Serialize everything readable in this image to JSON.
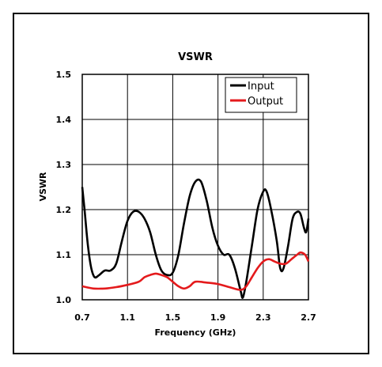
{
  "chart_data": {
    "type": "line",
    "title": "VSWR",
    "xlabel": "Frequency (GHz)",
    "ylabel": "VSWR",
    "xlim": [
      0.7,
      2.7
    ],
    "ylim": [
      1.0,
      1.5
    ],
    "xticks": [
      "0.7",
      "1.1",
      "1.5",
      "1.9",
      "2.3",
      "2.7"
    ],
    "yticks": [
      "1.0",
      "1.1",
      "1.2",
      "1.3",
      "1.4",
      "1.5"
    ],
    "grid": true,
    "legend_position": "top-right",
    "series": [
      {
        "name": "Input",
        "color": "#000000",
        "points": [
          [
            0.7,
            1.25
          ],
          [
            0.72,
            1.2
          ],
          [
            0.75,
            1.12
          ],
          [
            0.78,
            1.07
          ],
          [
            0.81,
            1.05
          ],
          [
            0.85,
            1.055
          ],
          [
            0.9,
            1.065
          ],
          [
            0.95,
            1.065
          ],
          [
            1.0,
            1.08
          ],
          [
            1.05,
            1.13
          ],
          [
            1.1,
            1.175
          ],
          [
            1.15,
            1.195
          ],
          [
            1.2,
            1.195
          ],
          [
            1.25,
            1.18
          ],
          [
            1.3,
            1.15
          ],
          [
            1.35,
            1.1
          ],
          [
            1.4,
            1.065
          ],
          [
            1.45,
            1.055
          ],
          [
            1.5,
            1.06
          ],
          [
            1.55,
            1.1
          ],
          [
            1.6,
            1.17
          ],
          [
            1.65,
            1.23
          ],
          [
            1.7,
            1.262
          ],
          [
            1.75,
            1.262
          ],
          [
            1.8,
            1.22
          ],
          [
            1.85,
            1.16
          ],
          [
            1.9,
            1.12
          ],
          [
            1.95,
            1.1
          ],
          [
            2.0,
            1.1
          ],
          [
            2.05,
            1.07
          ],
          [
            2.1,
            1.02
          ],
          [
            2.12,
            1.005
          ],
          [
            2.15,
            1.04
          ],
          [
            2.2,
            1.12
          ],
          [
            2.25,
            1.2
          ],
          [
            2.3,
            1.24
          ],
          [
            2.33,
            1.24
          ],
          [
            2.37,
            1.2
          ],
          [
            2.42,
            1.13
          ],
          [
            2.45,
            1.07
          ],
          [
            2.48,
            1.07
          ],
          [
            2.52,
            1.12
          ],
          [
            2.56,
            1.18
          ],
          [
            2.6,
            1.195
          ],
          [
            2.63,
            1.19
          ],
          [
            2.66,
            1.16
          ],
          [
            2.68,
            1.15
          ],
          [
            2.7,
            1.18
          ]
        ]
      },
      {
        "name": "Output",
        "color": "#e41a1c",
        "points": [
          [
            0.7,
            1.03
          ],
          [
            0.8,
            1.025
          ],
          [
            0.9,
            1.025
          ],
          [
            1.0,
            1.028
          ],
          [
            1.1,
            1.033
          ],
          [
            1.2,
            1.04
          ],
          [
            1.25,
            1.05
          ],
          [
            1.3,
            1.055
          ],
          [
            1.35,
            1.058
          ],
          [
            1.4,
            1.055
          ],
          [
            1.45,
            1.05
          ],
          [
            1.5,
            1.04
          ],
          [
            1.55,
            1.03
          ],
          [
            1.6,
            1.025
          ],
          [
            1.65,
            1.03
          ],
          [
            1.7,
            1.04
          ],
          [
            1.8,
            1.038
          ],
          [
            1.9,
            1.035
          ],
          [
            2.0,
            1.028
          ],
          [
            2.1,
            1.022
          ],
          [
            2.15,
            1.03
          ],
          [
            2.2,
            1.05
          ],
          [
            2.25,
            1.07
          ],
          [
            2.3,
            1.085
          ],
          [
            2.35,
            1.09
          ],
          [
            2.4,
            1.085
          ],
          [
            2.45,
            1.08
          ],
          [
            2.5,
            1.08
          ],
          [
            2.55,
            1.09
          ],
          [
            2.6,
            1.1
          ],
          [
            2.63,
            1.105
          ],
          [
            2.67,
            1.1
          ],
          [
            2.7,
            1.085
          ]
        ]
      }
    ]
  }
}
